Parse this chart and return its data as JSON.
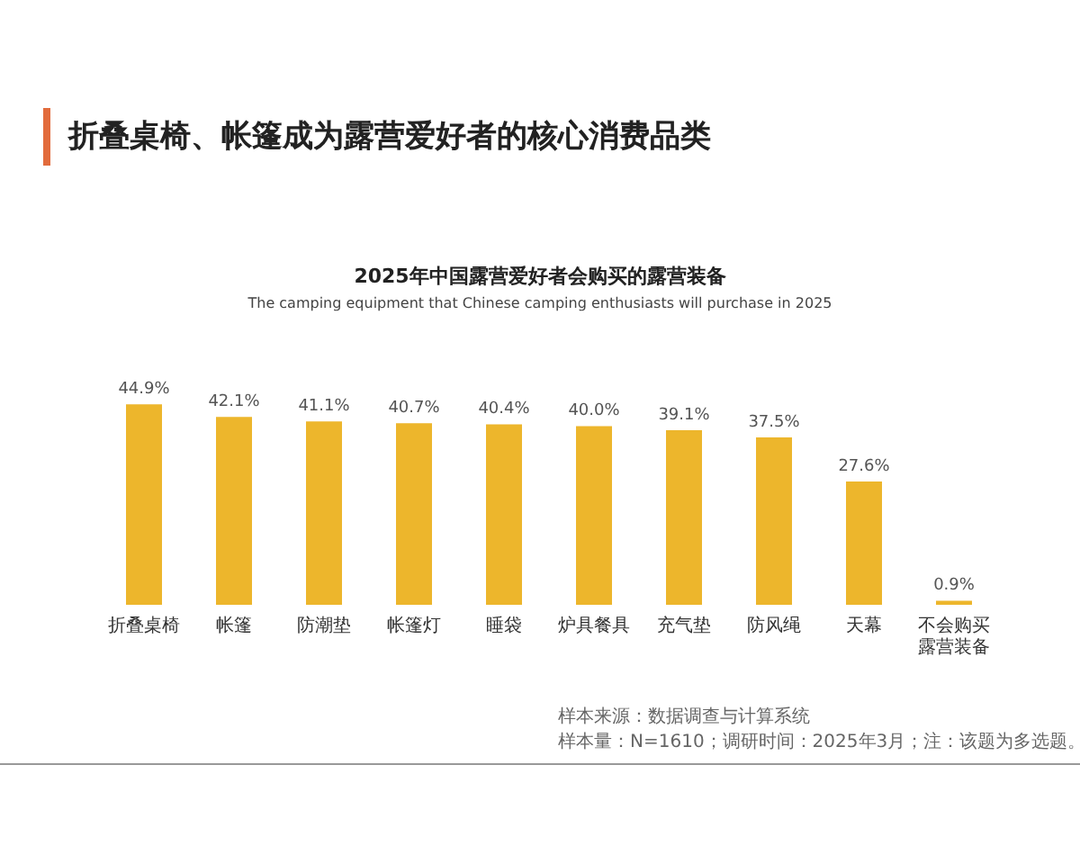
{
  "chart_data": {
    "type": "bar",
    "title": "折叠桌椅、帐篷成为露营爱好者的核心消费品类",
    "subtitle": "2025年中国露营爱好者会购买的露营装备",
    "annotations": [
      "The camping equipment that Chinese camping enthusiasts will purchase in 2025",
      "样本来源：数据调查与计算系统",
      "样本量：N=1610；调研时间：2025年3月；注：该题为多选题。"
    ],
    "categories": [
      "折叠桌椅",
      "帐篷",
      "防潮垫",
      "帐篷灯",
      "睡袋",
      "炉具餐具",
      "充气垫",
      "防风绳",
      "天幕",
      "不会购买露营装备"
    ],
    "values": [
      44.9,
      42.1,
      41.1,
      40.7,
      40.4,
      40.0,
      39.1,
      37.5,
      27.6,
      0.9
    ],
    "color": "#edb62c",
    "value_labels": [
      "44.9%",
      "42.1%",
      "41.1%",
      "40.7%",
      "40.4%",
      "40.0%",
      "39.1%",
      "37.5%",
      "27.6%",
      "0.9%"
    ],
    "tick_labels": "x"
  }
}
